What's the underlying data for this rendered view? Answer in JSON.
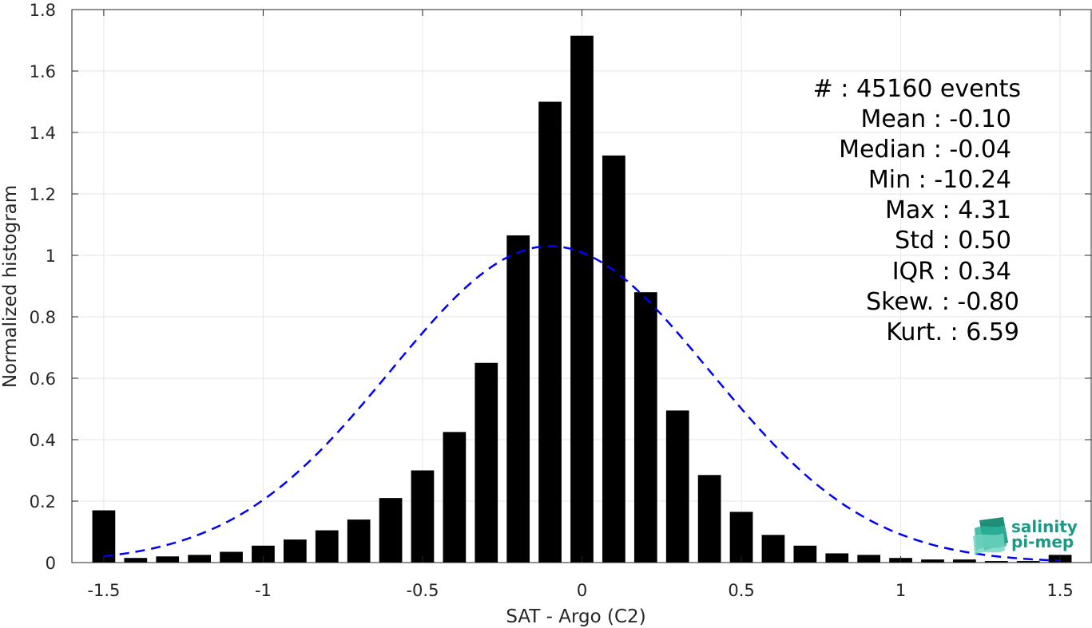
{
  "chart_data": {
    "type": "bar",
    "xlabel": "SAT - Argo (C2)",
    "ylabel": "Normalized histogram",
    "xlim": [
      -1.6,
      1.6
    ],
    "ylim": [
      0,
      1.8
    ],
    "xticks": [
      -1.5,
      -1,
      -0.5,
      0,
      0.5,
      1,
      1.5
    ],
    "xtick_labels": [
      "-1.5",
      "-1",
      "-0.5",
      "0",
      "0.5",
      "1",
      "1.5"
    ],
    "yticks": [
      0,
      0.2,
      0.4,
      0.6,
      0.8,
      1,
      1.2,
      1.4,
      1.6,
      1.8
    ],
    "ytick_labels": [
      "0",
      "0.2",
      "0.4",
      "0.6",
      "0.8",
      "1",
      "1.2",
      "1.4",
      "1.6",
      "1.8"
    ],
    "grid": true,
    "bar_color": "#000000",
    "fit_color": "#0000ff",
    "bars": {
      "x": [
        -1.5,
        -1.4,
        -1.3,
        -1.2,
        -1.1,
        -1.0,
        -0.9,
        -0.8,
        -0.7,
        -0.6,
        -0.5,
        -0.4,
        -0.3,
        -0.2,
        -0.1,
        0.0,
        0.1,
        0.2,
        0.3,
        0.4,
        0.5,
        0.6,
        0.7,
        0.8,
        0.9,
        1.0,
        1.1,
        1.2,
        1.3,
        1.4,
        1.5
      ],
      "values": [
        0.17,
        0.015,
        0.02,
        0.025,
        0.035,
        0.055,
        0.075,
        0.105,
        0.14,
        0.21,
        0.3,
        0.425,
        0.65,
        1.065,
        1.5,
        1.715,
        1.325,
        0.88,
        0.495,
        0.285,
        0.165,
        0.09,
        0.055,
        0.03,
        0.025,
        0.015,
        0.01,
        0.01,
        0.005,
        0.005,
        0.025
      ]
    },
    "fit": {
      "style": "dashed",
      "mean": -0.1,
      "std": 0.5,
      "peak": 1.03,
      "x_range": [
        -1.5,
        1.5
      ]
    }
  },
  "stats": {
    "events": "#  : 45160 events",
    "mean": "Mean : -0.10",
    "median": "Median : -0.04",
    "min": "Min : -10.24",
    "max": "Max : 4.31",
    "std": "Std : 0.50",
    "iqr": "IQR : 0.34",
    "skew": "Skew. : -0.80",
    "kurt": "Kurt. : 6.59"
  },
  "logo": {
    "line1": "salinity",
    "line2": "pi-mep"
  }
}
